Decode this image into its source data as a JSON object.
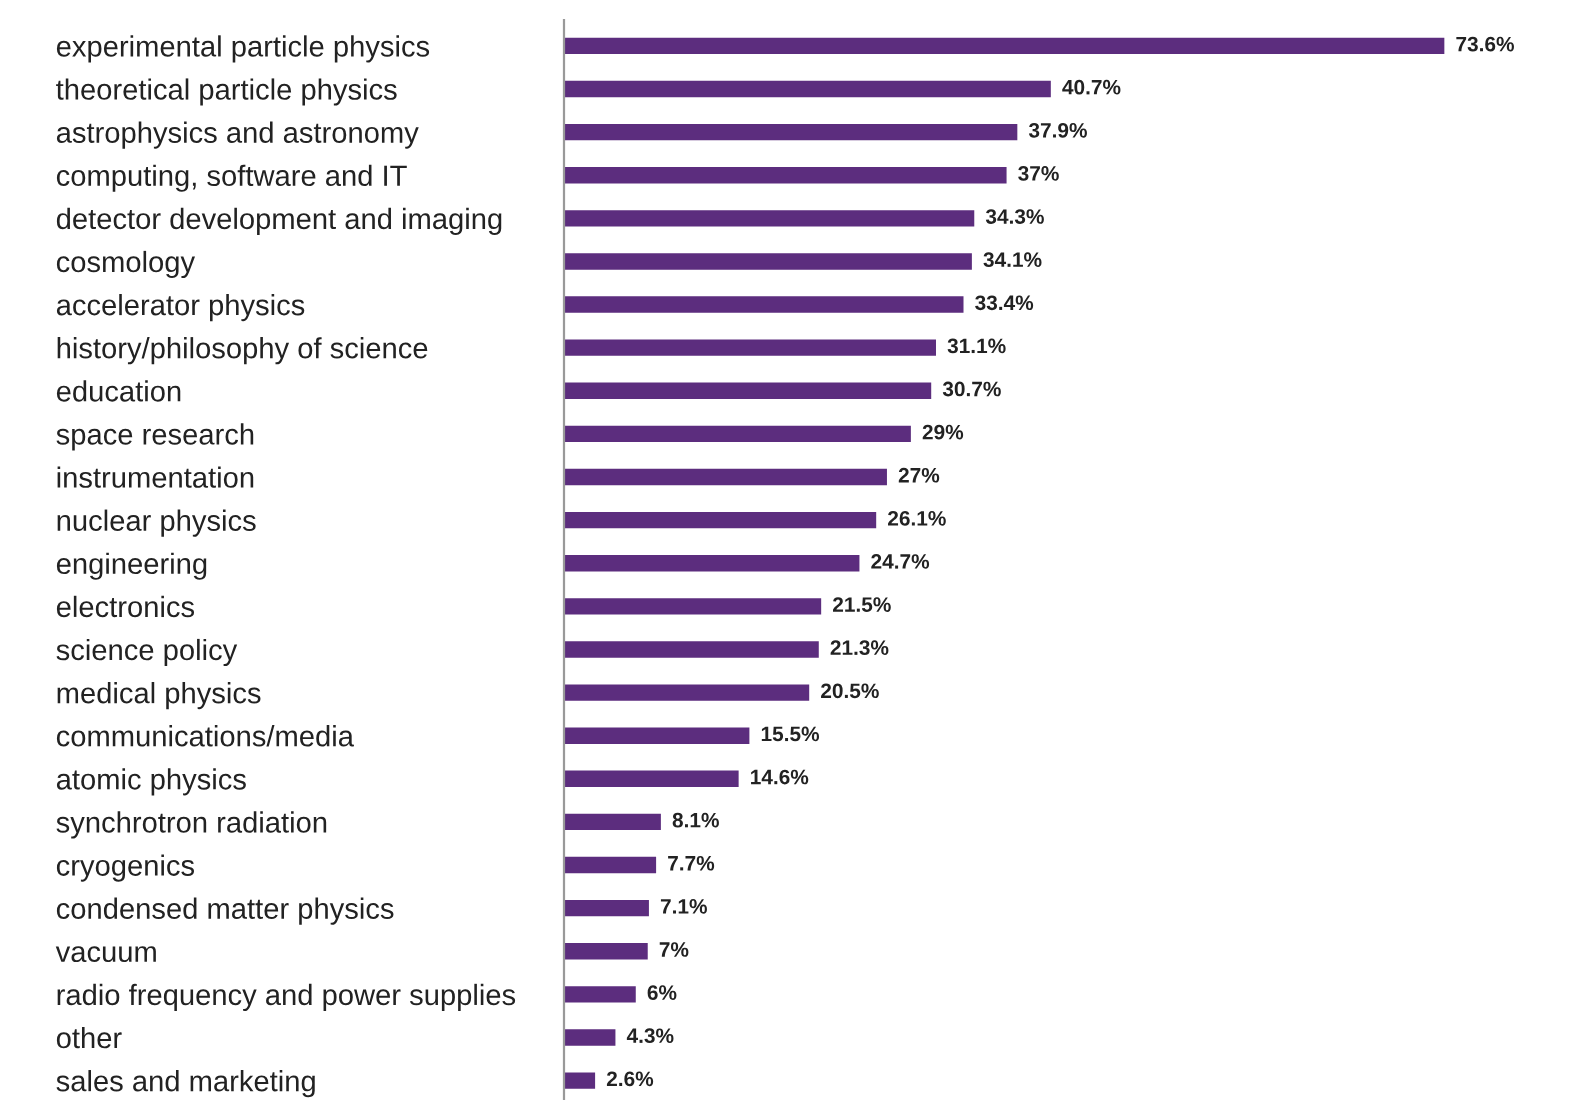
{
  "chart_data": {
    "type": "bar",
    "orientation": "horizontal",
    "color": "#5c2d7e",
    "categories": [
      "experimental particle physics",
      "theoretical particle physics",
      "astrophysics and astronomy",
      "computing, software and IT",
      "detector development and imaging",
      "cosmology",
      "accelerator physics",
      "history/philosophy of science",
      "education",
      "space research",
      "instrumentation",
      "nuclear physics",
      "engineering",
      "electronics",
      "science policy",
      "medical physics",
      "communications/media",
      "atomic physics",
      "synchrotron radiation",
      "cryogenics",
      "condensed matter physics",
      "vacuum",
      "radio frequency and power supplies",
      "other",
      "sales and marketing"
    ],
    "values": [
      73.6,
      40.7,
      37.9,
      37,
      34.3,
      34.1,
      33.4,
      31.1,
      30.7,
      29,
      27,
      26.1,
      24.7,
      21.5,
      21.3,
      20.5,
      15.5,
      14.6,
      8.1,
      7.7,
      7.1,
      7,
      6,
      4.3,
      2.6
    ],
    "value_labels": [
      "73.6%",
      "40.7%",
      "37.9%",
      "37%",
      "34.3%",
      "34.1%",
      "33.4%",
      "31.1%",
      "30.7%",
      "29%",
      "27%",
      "26.1%",
      "24.7%",
      "21.5%",
      "21.3%",
      "20.5%",
      "15.5%",
      "14.6%",
      "8.1%",
      "7.7%",
      "7.1%",
      "7%",
      "6%",
      "4.3%",
      "2.6%"
    ],
    "grid": false,
    "legend": false,
    "tick_labels": "y"
  }
}
